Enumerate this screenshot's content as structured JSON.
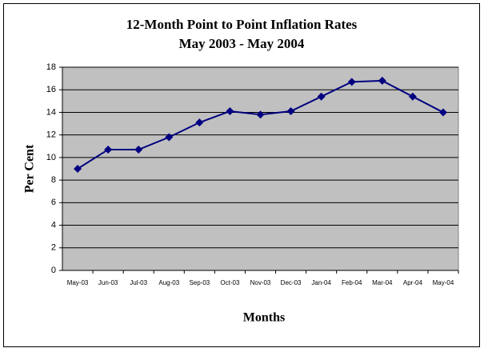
{
  "chart_data": {
    "type": "line",
    "title": "12-Month Point to Point Inflation Rates",
    "subtitle": "May 2003 - May 2004",
    "x_label": "Months",
    "y_label": "Per Cent",
    "categories": [
      "May-03",
      "Jun-03",
      "Jul-03",
      "Aug-03",
      "Sep-03",
      "Oct-03",
      "Nov-03",
      "Dec-03",
      "Jan-04",
      "Feb-04",
      "Mar-04",
      "Apr-04",
      "May-04"
    ],
    "series": [
      {
        "name": "Inflation",
        "color": "#000080",
        "values": [
          9.0,
          10.7,
          10.7,
          11.8,
          13.1,
          14.1,
          13.8,
          14.1,
          15.4,
          16.7,
          16.8,
          15.4,
          14.0
        ]
      }
    ],
    "ylim": [
      0,
      18
    ],
    "yticks": [
      0,
      2,
      4,
      6,
      8,
      10,
      12,
      14,
      16,
      18
    ],
    "grid": true,
    "plot_background": "#c0c0c0"
  }
}
